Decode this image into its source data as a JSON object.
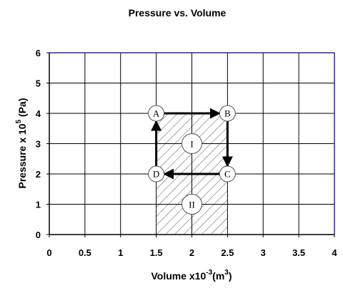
{
  "chart_data": {
    "type": "line",
    "title": "Pressure vs. Volume",
    "xlabel": {
      "text": "Volume x10",
      "exp": "-3",
      "unit_open": "(m",
      "unit_exp": "3",
      "unit_close": ")"
    },
    "ylabel": {
      "text": "Pressure x 10",
      "exp": "5",
      "unit": " (Pa)"
    },
    "xlim": [
      0,
      4
    ],
    "ylim": [
      0,
      6
    ],
    "xticks": [
      "0",
      "0.5",
      "1",
      "1.5",
      "2",
      "2.5",
      "3",
      "3.5",
      "4"
    ],
    "yticks": [
      "0",
      "1",
      "2",
      "3",
      "4",
      "5",
      "6"
    ],
    "grid": true,
    "points": [
      {
        "label": "A",
        "x": 1.5,
        "y": 4
      },
      {
        "label": "B",
        "x": 2.5,
        "y": 4
      },
      {
        "label": "C",
        "x": 2.5,
        "y": 2
      },
      {
        "label": "D",
        "x": 1.5,
        "y": 2
      }
    ],
    "cycle": [
      "A",
      "B",
      "C",
      "D",
      "A"
    ],
    "regions": [
      {
        "label": "I",
        "x": [
          1.5,
          2.5
        ],
        "y": [
          2,
          4
        ],
        "center": [
          2,
          3
        ]
      },
      {
        "label": "II",
        "x": [
          1.5,
          2.5
        ],
        "y": [
          0,
          2
        ],
        "center": [
          2,
          1
        ]
      }
    ],
    "colors": {
      "grid": "#000000",
      "frame_top_right": "#2b2b8a",
      "arrow": "#000000",
      "hatch": "#555555"
    }
  }
}
